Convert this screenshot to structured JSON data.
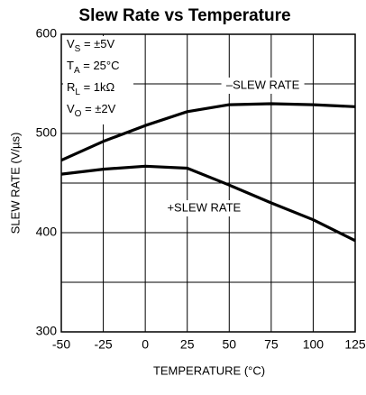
{
  "chart_data": {
    "type": "line",
    "title": "Slew Rate vs Temperature",
    "x_label": "TEMPERATURE (°C)",
    "y_label": "SLEW RATE (V/µs)",
    "x": [
      -50,
      -25,
      0,
      25,
      50,
      75,
      100,
      125
    ],
    "series": [
      {
        "name": "–SLEW RATE",
        "color": "#000000",
        "values": [
          473,
          492,
          508,
          522,
          529,
          530,
          529,
          527
        ]
      },
      {
        "name": "+SLEW RATE",
        "color": "#000000",
        "values": [
          459,
          464,
          467,
          465,
          448,
          430,
          413,
          392
        ]
      }
    ],
    "xlim": [
      -50,
      125
    ],
    "xticks": [
      -50,
      -25,
      0,
      25,
      50,
      75,
      100,
      125
    ],
    "ylim": [
      300,
      600
    ],
    "yticks": [
      300,
      400,
      500,
      600
    ],
    "yminor": [
      350,
      450,
      550
    ],
    "grid": true,
    "conditions": [
      {
        "main": "V",
        "sub": "S",
        "rest": " = ±5V"
      },
      {
        "main": "T",
        "sub": "A",
        "rest": " = 25°C"
      },
      {
        "main": "R",
        "sub": "L",
        "rest": " = 1kΩ"
      },
      {
        "main": "V",
        "sub": "O",
        "rest": " = ±2V"
      }
    ]
  }
}
